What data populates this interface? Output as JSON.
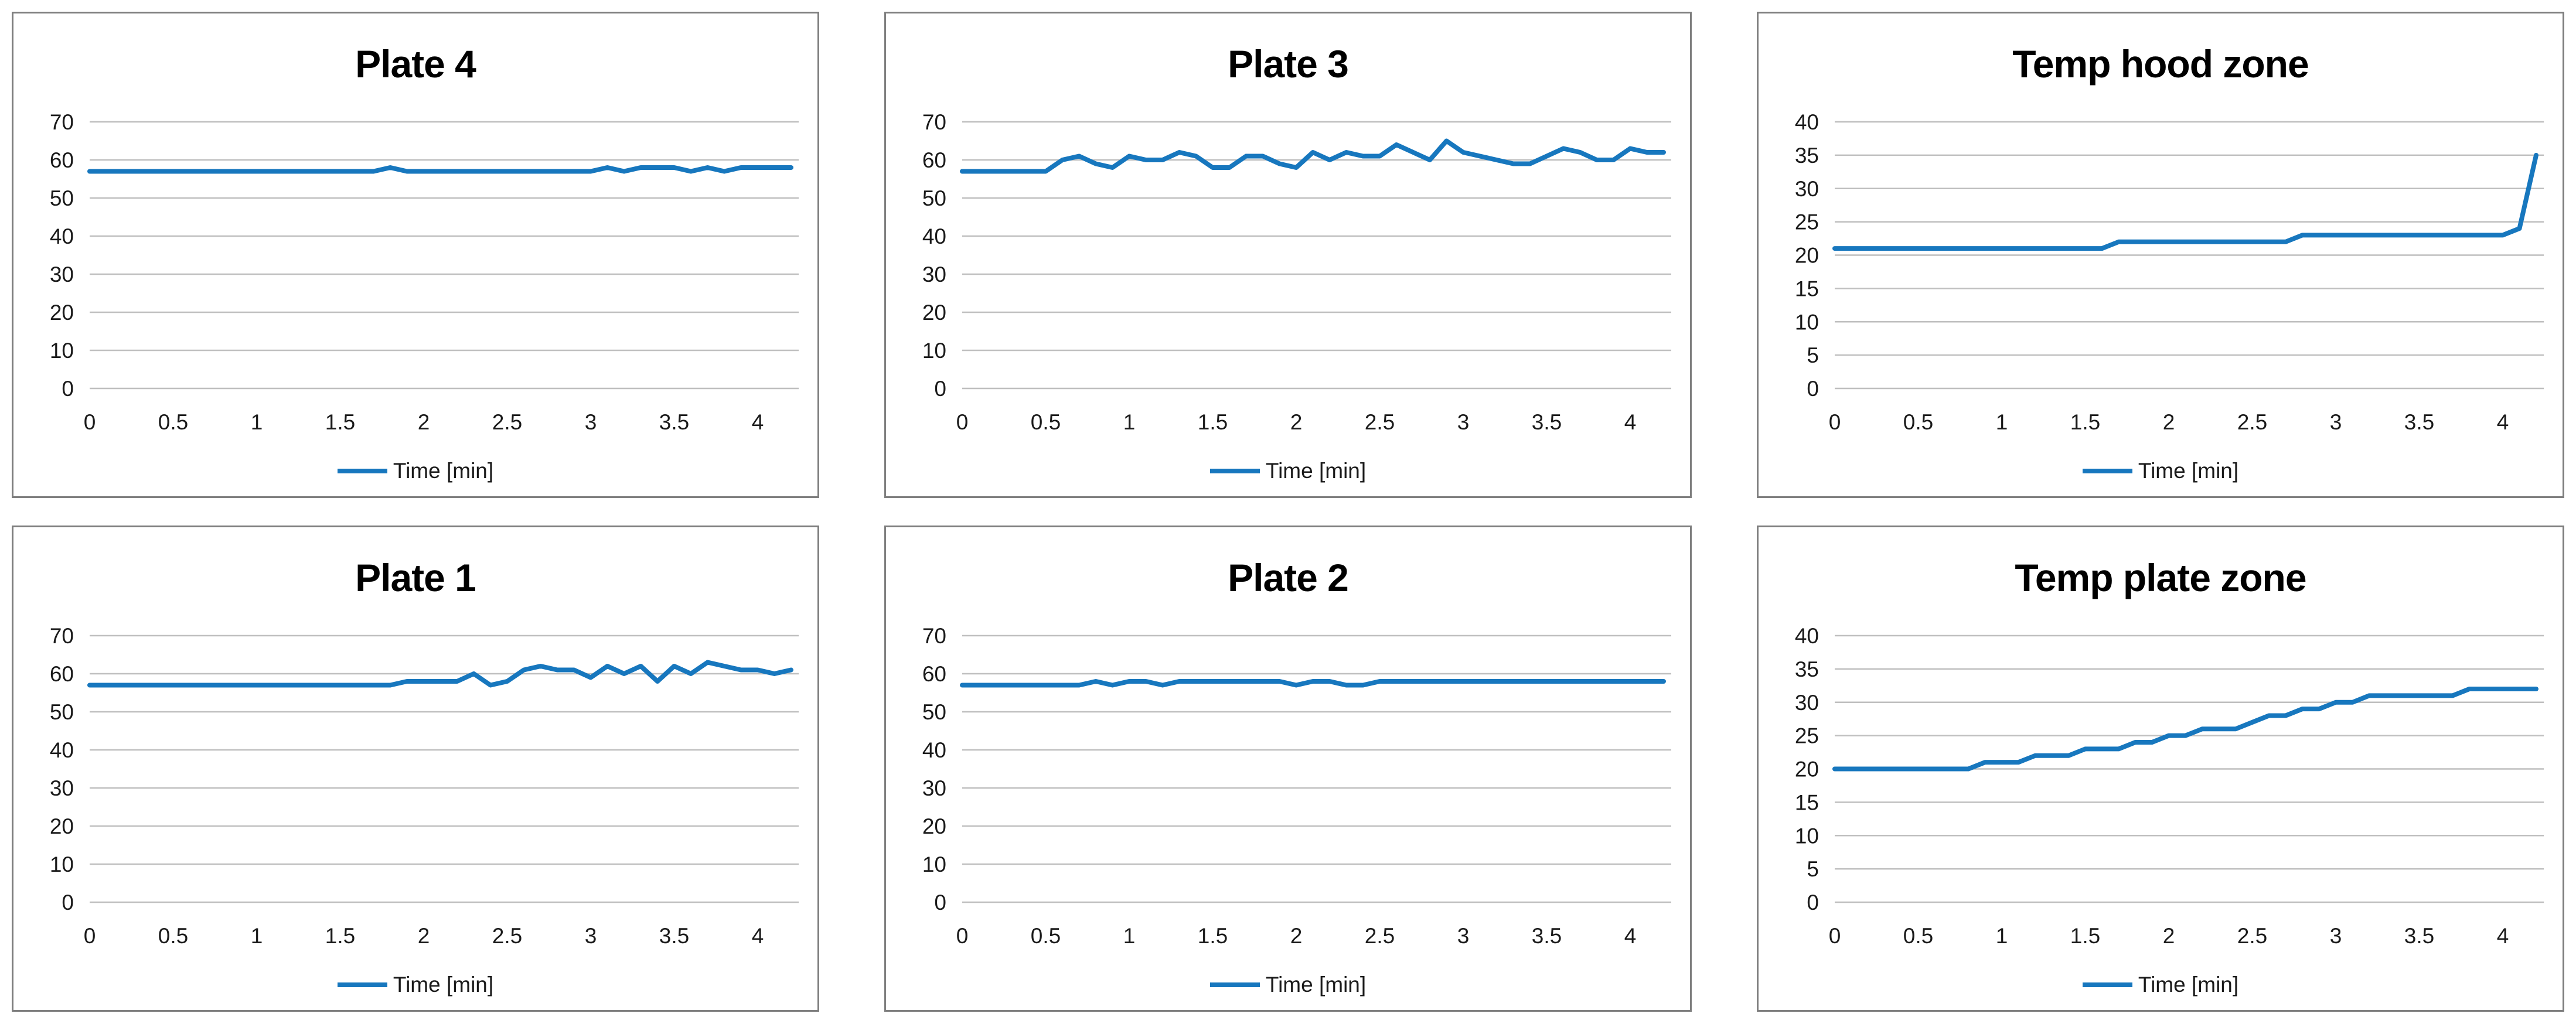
{
  "style": {
    "line_color": "#1777BE",
    "grid_color": "#BFBFBF",
    "border_color": "#7F7F7F",
    "tick_color": "#1A1A1A",
    "title_color": "#000000",
    "background": "#FFFFFF"
  },
  "chart_data": [
    {
      "type": "line",
      "title": "Plate 4",
      "legend": "Time [min]",
      "xlabel": "",
      "ylabel": "",
      "ylim": [
        0,
        70
      ],
      "yticks": [
        0,
        10,
        20,
        30,
        40,
        50,
        60,
        70
      ],
      "xticks": [
        "0",
        "0.5",
        "1",
        "1.5",
        "2",
        "2.5",
        "3",
        "3.5",
        "4"
      ],
      "grid": true,
      "legend_position": "bottom",
      "x": [
        0,
        0.1,
        0.2,
        0.3,
        0.4,
        0.5,
        0.6,
        0.7,
        0.8,
        0.9,
        1,
        1.1,
        1.2,
        1.3,
        1.4,
        1.5,
        1.6,
        1.7,
        1.8,
        1.9,
        2,
        2.1,
        2.2,
        2.3,
        2.4,
        2.5,
        2.6,
        2.7,
        2.8,
        2.9,
        3,
        3.1,
        3.2,
        3.3,
        3.4,
        3.5,
        3.6,
        3.7,
        3.8,
        3.9,
        4,
        4.1,
        4.2
      ],
      "values": [
        57,
        57,
        57,
        57,
        57,
        57,
        57,
        57,
        57,
        57,
        57,
        57,
        57,
        57,
        57,
        57,
        57,
        57,
        58,
        57,
        57,
        57,
        57,
        57,
        57,
        57,
        57,
        57,
        57,
        57,
        57,
        58,
        57,
        58,
        58,
        58,
        57,
        58,
        57,
        58,
        58,
        58,
        58
      ]
    },
    {
      "type": "line",
      "title": "Plate 3",
      "legend": "Time [min]",
      "xlabel": "",
      "ylabel": "",
      "ylim": [
        0,
        70
      ],
      "yticks": [
        0,
        10,
        20,
        30,
        40,
        50,
        60,
        70
      ],
      "xticks": [
        "0",
        "0.5",
        "1",
        "1.5",
        "2",
        "2.5",
        "3",
        "3.5",
        "4"
      ],
      "grid": true,
      "legend_position": "bottom",
      "x": [
        0,
        0.1,
        0.2,
        0.3,
        0.4,
        0.5,
        0.6,
        0.7,
        0.8,
        0.9,
        1,
        1.1,
        1.2,
        1.3,
        1.4,
        1.5,
        1.6,
        1.7,
        1.8,
        1.9,
        2,
        2.1,
        2.2,
        2.3,
        2.4,
        2.5,
        2.6,
        2.7,
        2.8,
        2.9,
        3,
        3.1,
        3.2,
        3.3,
        3.4,
        3.5,
        3.6,
        3.7,
        3.8,
        3.9,
        4,
        4.1,
        4.2
      ],
      "values": [
        57,
        57,
        57,
        57,
        57,
        57,
        60,
        61,
        59,
        58,
        61,
        60,
        60,
        62,
        61,
        58,
        58,
        61,
        61,
        59,
        58,
        62,
        60,
        62,
        61,
        61,
        64,
        62,
        60,
        65,
        62,
        61,
        60,
        59,
        59,
        61,
        63,
        62,
        60,
        60,
        63,
        62,
        62
      ]
    },
    {
      "type": "line",
      "title": "Temp hood zone",
      "legend": "Time [min]",
      "xlabel": "",
      "ylabel": "",
      "ylim": [
        0,
        40
      ],
      "yticks": [
        0,
        5,
        10,
        15,
        20,
        25,
        30,
        35,
        40
      ],
      "xticks": [
        "0",
        "0.5",
        "1",
        "1.5",
        "2",
        "2.5",
        "3",
        "3.5",
        "4"
      ],
      "grid": true,
      "legend_position": "bottom",
      "x": [
        0,
        0.1,
        0.2,
        0.3,
        0.4,
        0.5,
        0.6,
        0.7,
        0.8,
        0.9,
        1,
        1.1,
        1.2,
        1.3,
        1.4,
        1.5,
        1.6,
        1.7,
        1.8,
        1.9,
        2,
        2.1,
        2.2,
        2.3,
        2.4,
        2.5,
        2.6,
        2.7,
        2.8,
        2.9,
        3,
        3.1,
        3.2,
        3.3,
        3.4,
        3.5,
        3.6,
        3.7,
        3.8,
        3.9,
        4,
        4.1,
        4.2
      ],
      "values": [
        21,
        21,
        21,
        21,
        21,
        21,
        21,
        21,
        21,
        21,
        21,
        21,
        21,
        21,
        21,
        21,
        21,
        22,
        22,
        22,
        22,
        22,
        22,
        22,
        22,
        22,
        22,
        22,
        23,
        23,
        23,
        23,
        23,
        23,
        23,
        23,
        23,
        23,
        23,
        23,
        23,
        24,
        35
      ]
    },
    {
      "type": "line",
      "title": "Plate 1",
      "legend": "Time [min]",
      "xlabel": "",
      "ylabel": "",
      "ylim": [
        0,
        70
      ],
      "yticks": [
        0,
        10,
        20,
        30,
        40,
        50,
        60,
        70
      ],
      "xticks": [
        "0",
        "0.5",
        "1",
        "1.5",
        "2",
        "2.5",
        "3",
        "3.5",
        "4"
      ],
      "grid": true,
      "legend_position": "bottom",
      "x": [
        0,
        0.1,
        0.2,
        0.3,
        0.4,
        0.5,
        0.6,
        0.7,
        0.8,
        0.9,
        1,
        1.1,
        1.2,
        1.3,
        1.4,
        1.5,
        1.6,
        1.7,
        1.8,
        1.9,
        2,
        2.1,
        2.2,
        2.3,
        2.4,
        2.5,
        2.6,
        2.7,
        2.8,
        2.9,
        3,
        3.1,
        3.2,
        3.3,
        3.4,
        3.5,
        3.6,
        3.7,
        3.8,
        3.9,
        4,
        4.1,
        4.2
      ],
      "values": [
        57,
        57,
        57,
        57,
        57,
        57,
        57,
        57,
        57,
        57,
        57,
        57,
        57,
        57,
        57,
        57,
        57,
        57,
        57,
        58,
        58,
        58,
        58,
        60,
        57,
        58,
        61,
        62,
        61,
        61,
        59,
        62,
        60,
        62,
        58,
        62,
        60,
        63,
        62,
        61,
        61,
        60,
        61
      ]
    },
    {
      "type": "line",
      "title": "Plate 2",
      "legend": "Time [min]",
      "xlabel": "",
      "ylabel": "",
      "ylim": [
        0,
        70
      ],
      "yticks": [
        0,
        10,
        20,
        30,
        40,
        50,
        60,
        70
      ],
      "xticks": [
        "0",
        "0.5",
        "1",
        "1.5",
        "2",
        "2.5",
        "3",
        "3.5",
        "4"
      ],
      "grid": true,
      "legend_position": "bottom",
      "x": [
        0,
        0.1,
        0.2,
        0.3,
        0.4,
        0.5,
        0.6,
        0.7,
        0.8,
        0.9,
        1,
        1.1,
        1.2,
        1.3,
        1.4,
        1.5,
        1.6,
        1.7,
        1.8,
        1.9,
        2,
        2.1,
        2.2,
        2.3,
        2.4,
        2.5,
        2.6,
        2.7,
        2.8,
        2.9,
        3,
        3.1,
        3.2,
        3.3,
        3.4,
        3.5,
        3.6,
        3.7,
        3.8,
        3.9,
        4,
        4.1,
        4.2
      ],
      "values": [
        57,
        57,
        57,
        57,
        57,
        57,
        57,
        57,
        58,
        57,
        58,
        58,
        57,
        58,
        58,
        58,
        58,
        58,
        58,
        58,
        57,
        58,
        58,
        57,
        57,
        58,
        58,
        58,
        58,
        58,
        58,
        58,
        58,
        58,
        58,
        58,
        58,
        58,
        58,
        58,
        58,
        58,
        58
      ]
    },
    {
      "type": "line",
      "title": "Temp plate zone",
      "legend": "Time [min]",
      "xlabel": "",
      "ylabel": "",
      "ylim": [
        0,
        40
      ],
      "yticks": [
        0,
        5,
        10,
        15,
        20,
        25,
        30,
        35,
        40
      ],
      "xticks": [
        "0",
        "0.5",
        "1",
        "1.5",
        "2",
        "2.5",
        "3",
        "3.5",
        "4"
      ],
      "grid": true,
      "legend_position": "bottom",
      "x": [
        0,
        0.1,
        0.2,
        0.3,
        0.4,
        0.5,
        0.6,
        0.7,
        0.8,
        0.9,
        1,
        1.1,
        1.2,
        1.3,
        1.4,
        1.5,
        1.6,
        1.7,
        1.8,
        1.9,
        2,
        2.1,
        2.2,
        2.3,
        2.4,
        2.5,
        2.6,
        2.7,
        2.8,
        2.9,
        3,
        3.1,
        3.2,
        3.3,
        3.4,
        3.5,
        3.6,
        3.7,
        3.8,
        3.9,
        4,
        4.1,
        4.2
      ],
      "values": [
        20,
        20,
        20,
        20,
        20,
        20,
        20,
        20,
        20,
        21,
        21,
        21,
        22,
        22,
        22,
        23,
        23,
        23,
        24,
        24,
        25,
        25,
        26,
        26,
        26,
        27,
        28,
        28,
        29,
        29,
        30,
        30,
        31,
        31,
        31,
        31,
        31,
        31,
        32,
        32,
        32,
        32,
        32
      ]
    }
  ]
}
